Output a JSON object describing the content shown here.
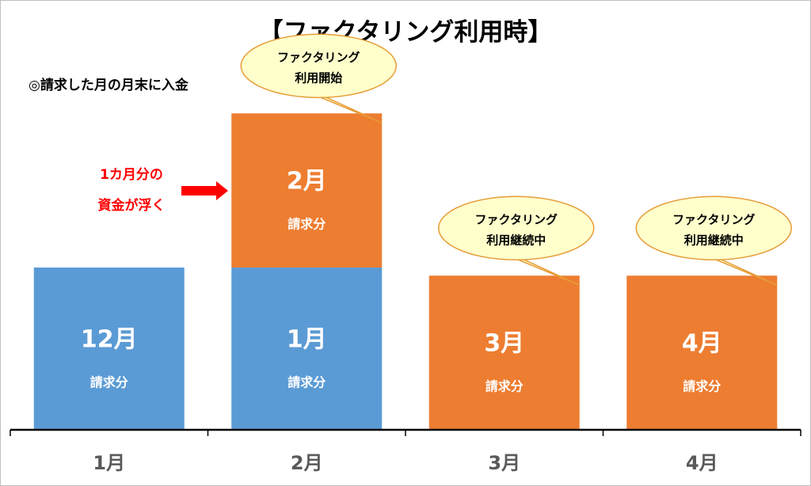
{
  "chart_data": {
    "type": "bar",
    "stacked": true,
    "title": "【ファクタリング利用時】",
    "note": "◎請求した月の月末に入金",
    "callout": {
      "lines": [
        "1カ月分の",
        "資金が浮く"
      ]
    },
    "categories": [
      "1月",
      "2月",
      "3月",
      "4月"
    ],
    "sub_label": "請求分",
    "segments": [
      {
        "category": "1月",
        "label": "12月",
        "value": 1.0,
        "color": "#5b9bd5"
      },
      {
        "category": "2月",
        "label": "1月",
        "value": 1.0,
        "color": "#5b9bd5"
      },
      {
        "category": "2月",
        "label": "2月",
        "value": 0.95,
        "color": "#ed7d31"
      },
      {
        "category": "3月",
        "label": "3月",
        "value": 0.95,
        "color": "#ed7d31"
      },
      {
        "category": "4月",
        "label": "4月",
        "value": 0.95,
        "color": "#ed7d31"
      }
    ],
    "bubbles": [
      {
        "category": "2月",
        "lines": [
          "ファクタリング",
          "利用開始"
        ]
      },
      {
        "category": "3月",
        "lines": [
          "ファクタリング",
          "利用継続中"
        ]
      },
      {
        "category": "4月",
        "lines": [
          "ファクタリング",
          "利用継続中"
        ]
      }
    ],
    "colors": {
      "invoice_collected": "#5b9bd5",
      "factoring": "#ed7d31",
      "bubble_fill": "#ffffcc",
      "bubble_stroke": "#e69b35",
      "callout": "#ff0000",
      "axis": "#000000"
    },
    "legend": "none",
    "grid": false
  }
}
